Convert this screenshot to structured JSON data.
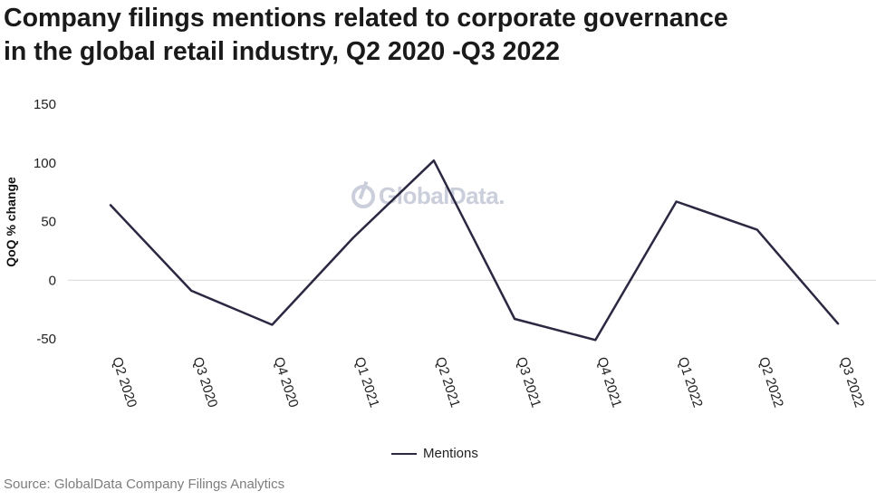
{
  "chart_data": {
    "type": "line",
    "title_line1": "Company filings mentions related to corporate governance",
    "title_line2": "in the global retail industry, Q2 2020 -Q3 2022",
    "ylabel": "QoQ % change",
    "xlabel": "",
    "categories": [
      "Q2 2020",
      "Q3 2020",
      "Q4 2020",
      "Q1 2021",
      "Q2 2021",
      "Q3 2021",
      "Q4 2021",
      "Q1 2022",
      "Q2 2022",
      "Q3 2022"
    ],
    "series": [
      {
        "name": "Mentions",
        "values": [
          64,
          -9,
          -38,
          36,
          102,
          -33,
          -51,
          67,
          43,
          -37
        ],
        "color": "#2b2842"
      }
    ],
    "ylim": [
      -50,
      150
    ],
    "yticks": [
      150,
      100,
      50,
      0,
      -50
    ],
    "grid": "zero-line only",
    "legend_position": "bottom-center"
  },
  "watermark": {
    "text": "GlobalData.",
    "icon": "globaldata-logo-icon"
  },
  "source": "Source: GlobalData Company Filings Analytics"
}
